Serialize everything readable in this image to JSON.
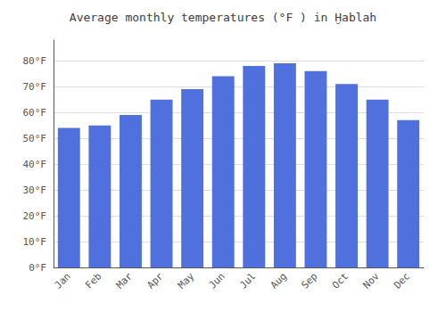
{
  "chart_data": {
    "type": "bar",
    "title": "Average monthly temperatures (°F ) in Ḫablah",
    "categories": [
      "Jan",
      "Feb",
      "Mar",
      "Apr",
      "May",
      "Jun",
      "Jul",
      "Aug",
      "Sep",
      "Oct",
      "Nov",
      "Dec"
    ],
    "values": [
      54,
      55,
      59,
      65,
      69,
      74,
      78,
      79,
      76,
      71,
      65,
      57
    ],
    "ylim": [
      0,
      88
    ],
    "yticks": [
      {
        "value": 0,
        "label": "0°F"
      },
      {
        "value": 10,
        "label": "10°F"
      },
      {
        "value": 20,
        "label": "20°F"
      },
      {
        "value": 30,
        "label": "30°F"
      },
      {
        "value": 40,
        "label": "40°F"
      },
      {
        "value": 50,
        "label": "50°F"
      },
      {
        "value": 60,
        "label": "60°F"
      },
      {
        "value": 70,
        "label": "70°F"
      },
      {
        "value": 80,
        "label": "80°F"
      }
    ],
    "grid": true
  }
}
